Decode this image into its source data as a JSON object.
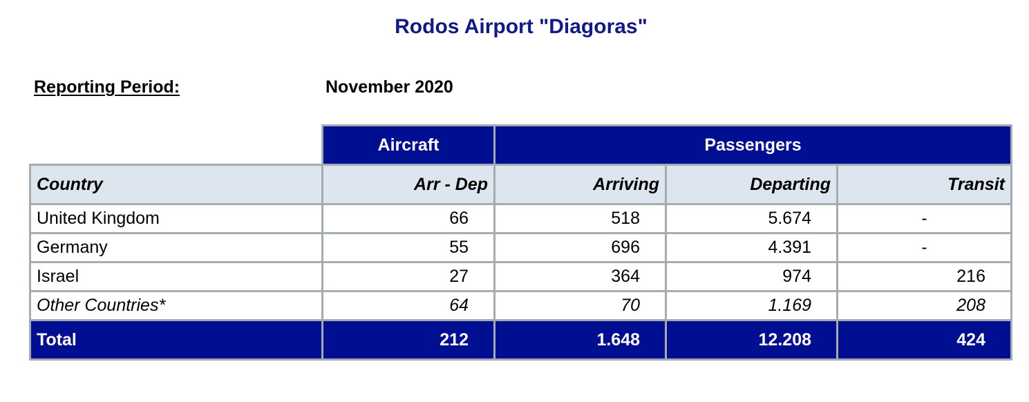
{
  "title": "Rodos Airport \"Diagoras\"",
  "reporting": {
    "label": "Reporting Period:",
    "value": "November 2020"
  },
  "table": {
    "group_headers": {
      "aircraft": "Aircraft",
      "passengers": "Passengers"
    },
    "columns": {
      "country": "Country",
      "arr_dep": "Arr - Dep",
      "arriving": "Arriving",
      "departing": "Departing",
      "transit": "Transit"
    },
    "rows": [
      {
        "country": "United Kingdom",
        "arr_dep": "66",
        "arriving": "518",
        "departing": "5.674",
        "transit": "-"
      },
      {
        "country": "Germany",
        "arr_dep": "55",
        "arriving": "696",
        "departing": "4.391",
        "transit": "-"
      },
      {
        "country": "Israel",
        "arr_dep": "27",
        "arriving": "364",
        "departing": "974",
        "transit": "216"
      },
      {
        "country": "Other Countries*",
        "arr_dep": "64",
        "arriving": "70",
        "departing": "1.169",
        "transit": "208"
      }
    ],
    "total": {
      "label": "Total",
      "arr_dep": "212",
      "arriving": "1.648",
      "departing": "12.208",
      "transit": "424"
    }
  },
  "colors": {
    "title": "#0f1a86",
    "header_fill": "#000e91",
    "subheader_fill": "#dde5ef",
    "border": "#a5abb3"
  }
}
